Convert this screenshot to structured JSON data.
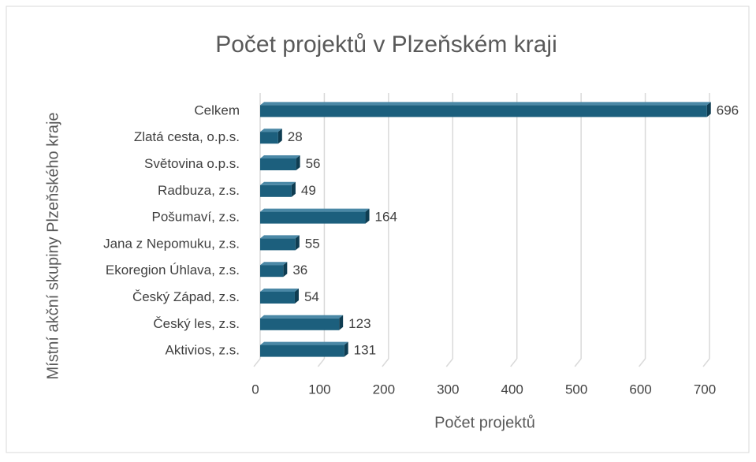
{
  "chart_data": {
    "type": "bar",
    "orientation": "horizontal",
    "title": "Počet projektů v Plzeňském kraji",
    "xlabel": "Počet projektů",
    "ylabel": "Místní akční skupiny Plzeňského kraje",
    "categories": [
      "Celkem",
      "Zlatá cesta, o.p.s.",
      "Světovina o.p.s.",
      "Radbuza, z.s.",
      "Pošumaví, z.s.",
      "Jana z Nepomuku, z.s.",
      "Ekoregion Úhlava, z.s.",
      "Český Západ, z.s.",
      "Český les, z.s.",
      "Aktivios, z.s."
    ],
    "values": [
      696,
      28,
      56,
      49,
      164,
      55,
      36,
      54,
      123,
      131
    ],
    "color": "#1c5f7d",
    "xlim": [
      0,
      700
    ],
    "xticks": [
      0,
      100,
      200,
      300,
      400,
      500,
      600,
      700
    ],
    "grid": true
  }
}
